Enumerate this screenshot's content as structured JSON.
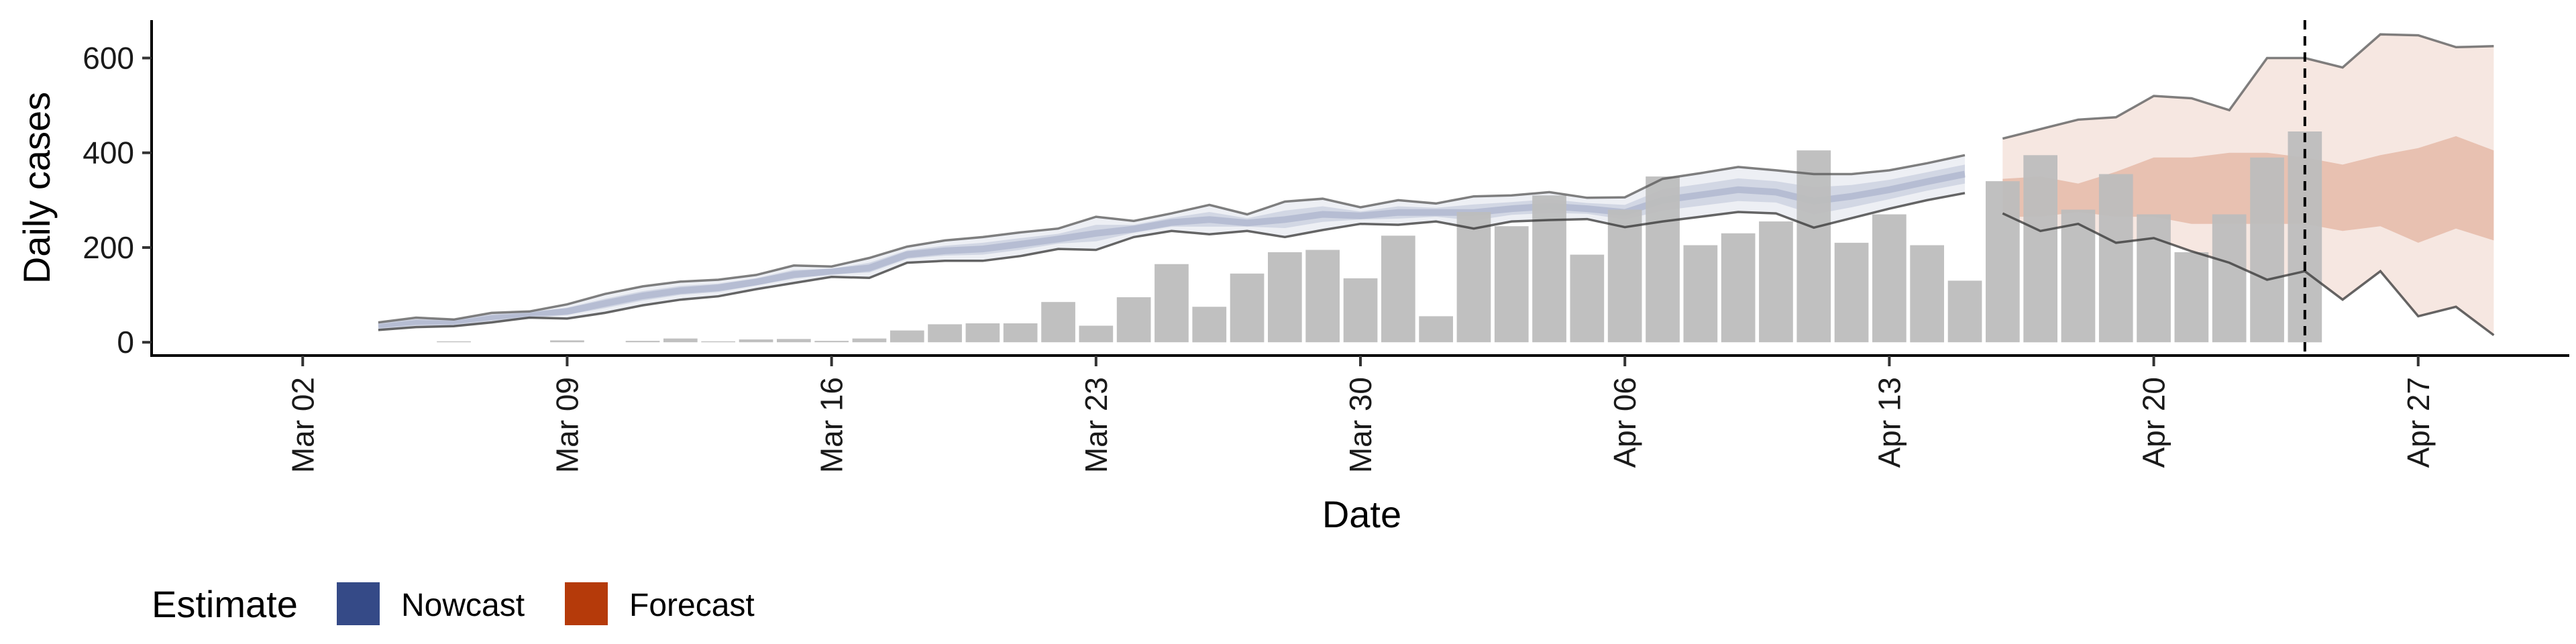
{
  "chart_data": {
    "type": "bar",
    "xlabel": "Date",
    "ylabel": "Daily cases",
    "ylim": [
      -28,
      680
    ],
    "yticks": [
      0,
      200,
      400,
      600
    ],
    "xticks": [
      {
        "date": "2020-03-02",
        "label": "Mar 02"
      },
      {
        "date": "2020-03-09",
        "label": "Mar 09"
      },
      {
        "date": "2020-03-16",
        "label": "Mar 16"
      },
      {
        "date": "2020-03-23",
        "label": "Mar 23"
      },
      {
        "date": "2020-03-30",
        "label": "Mar 30"
      },
      {
        "date": "2020-04-06",
        "label": "Apr 06"
      },
      {
        "date": "2020-04-13",
        "label": "Apr 13"
      },
      {
        "date": "2020-04-20",
        "label": "Apr 20"
      },
      {
        "date": "2020-04-27",
        "label": "Apr 27"
      }
    ],
    "xlim": [
      "2020-02-27",
      "2020-05-01"
    ],
    "grid": false,
    "legend": {
      "position": "bottom-left",
      "title": "Estimate",
      "items": [
        {
          "label": "Nowcast",
          "color": "#354a87"
        },
        {
          "label": "Forecast",
          "color": "#b53a0a"
        }
      ]
    },
    "bar_color": "#bdbdbd",
    "reference_line_date": "2020-04-24",
    "reported_cases": {
      "dates": [
        "2020-03-06",
        "2020-03-09",
        "2020-03-11",
        "2020-03-12",
        "2020-03-13",
        "2020-03-14",
        "2020-03-15",
        "2020-03-16",
        "2020-03-17",
        "2020-03-18",
        "2020-03-19",
        "2020-03-20",
        "2020-03-21",
        "2020-03-22",
        "2020-03-23",
        "2020-03-24",
        "2020-03-25",
        "2020-03-26",
        "2020-03-27",
        "2020-03-28",
        "2020-03-29",
        "2020-03-30",
        "2020-03-31",
        "2020-04-01",
        "2020-04-02",
        "2020-04-03",
        "2020-04-04",
        "2020-04-05",
        "2020-04-06",
        "2020-04-07",
        "2020-04-08",
        "2020-04-09",
        "2020-04-10",
        "2020-04-11",
        "2020-04-12",
        "2020-04-13",
        "2020-04-14",
        "2020-04-15",
        "2020-04-16",
        "2020-04-17",
        "2020-04-18",
        "2020-04-19",
        "2020-04-20",
        "2020-04-21",
        "2020-04-22",
        "2020-04-23",
        "2020-04-24"
      ],
      "values": [
        2,
        4,
        3,
        8,
        2,
        6,
        7,
        3,
        8,
        25,
        38,
        40,
        40,
        85,
        35,
        95,
        165,
        75,
        145,
        190,
        195,
        135,
        225,
        55,
        275,
        245,
        310,
        185,
        280,
        350,
        205,
        230,
        255,
        405,
        210,
        270,
        205,
        130,
        340,
        395,
        280,
        355,
        270,
        190,
        270,
        390,
        445
      ]
    },
    "series": [
      {
        "name": "Nowcast",
        "color": "#354a87",
        "dates": [
          "2020-03-04",
          "2020-03-05",
          "2020-03-06",
          "2020-03-07",
          "2020-03-08",
          "2020-03-09",
          "2020-03-10",
          "2020-03-11",
          "2020-03-12",
          "2020-03-13",
          "2020-03-14",
          "2020-03-15",
          "2020-03-16",
          "2020-03-17",
          "2020-03-18",
          "2020-03-19",
          "2020-03-20",
          "2020-03-21",
          "2020-03-22",
          "2020-03-23",
          "2020-03-24",
          "2020-03-25",
          "2020-03-26",
          "2020-03-27",
          "2020-03-28",
          "2020-03-29",
          "2020-03-30",
          "2020-03-31",
          "2020-04-01",
          "2020-04-02",
          "2020-04-03",
          "2020-04-04",
          "2020-04-05",
          "2020-04-06",
          "2020-04-07",
          "2020-04-08",
          "2020-04-09",
          "2020-04-10",
          "2020-04-11",
          "2020-04-12",
          "2020-04-13",
          "2020-04-14",
          "2020-04-15"
        ],
        "upper": [
          42,
          52,
          48,
          62,
          65,
          80,
          102,
          118,
          128,
          132,
          142,
          162,
          160,
          178,
          202,
          215,
          222,
          232,
          240,
          265,
          256,
          272,
          290,
          270,
          297,
          303,
          285,
          300,
          293,
          308,
          310,
          317,
          305,
          306,
          345,
          357,
          370,
          363,
          355,
          355,
          363,
          378,
          395
        ],
        "lower": [
          26,
          32,
          34,
          42,
          52,
          50,
          62,
          78,
          90,
          97,
          112,
          125,
          138,
          136,
          168,
          172,
          172,
          182,
          197,
          195,
          222,
          235,
          228,
          235,
          222,
          237,
          250,
          248,
          255,
          240,
          255,
          258,
          260,
          243,
          255,
          265,
          275,
          272,
          242,
          262,
          282,
          300,
          315
        ],
        "median": [
          34,
          42,
          41,
          52,
          58,
          65,
          82,
          98,
          109,
          115,
          127,
          143,
          149,
          157,
          185,
          193,
          197,
          207,
          218,
          230,
          239,
          253,
          259,
          252,
          259,
          270,
          267,
          274,
          274,
          274,
          282,
          287,
          282,
          274,
          300,
          311,
          322,
          317,
          298,
          308,
          322,
          339,
          355
        ],
        "inner_upper": [
          38,
          47,
          45,
          57,
          62,
          73,
          92,
          108,
          119,
          124,
          135,
          153,
          155,
          168,
          194,
          204,
          210,
          220,
          229,
          248,
          248,
          263,
          275,
          262,
          278,
          287,
          276,
          287,
          284,
          291,
          296,
          302,
          294,
          290,
          323,
          334,
          346,
          340,
          327,
          332,
          343,
          359,
          375
        ],
        "inner_lower": [
          30,
          37,
          38,
          47,
          55,
          58,
          72,
          88,
          100,
          106,
          120,
          134,
          144,
          147,
          176,
          183,
          185,
          195,
          208,
          213,
          231,
          244,
          244,
          244,
          241,
          254,
          259,
          261,
          265,
          257,
          269,
          273,
          271,
          259,
          278,
          288,
          298,
          295,
          270,
          285,
          302,
          320,
          335
        ]
      },
      {
        "name": "Forecast",
        "color": "#b53a0a",
        "dates": [
          "2020-04-16",
          "2020-04-17",
          "2020-04-18",
          "2020-04-19",
          "2020-04-20",
          "2020-04-21",
          "2020-04-22",
          "2020-04-23",
          "2020-04-24",
          "2020-04-25",
          "2020-04-26",
          "2020-04-27",
          "2020-04-28",
          "2020-04-29"
        ],
        "upper": [
          430,
          450,
          470,
          475,
          520,
          515,
          490,
          600,
          600,
          580,
          650,
          648,
          623,
          625
        ],
        "lower": [
          272,
          235,
          250,
          210,
          220,
          192,
          168,
          132,
          150,
          90,
          150,
          55,
          75,
          15
        ],
        "inner_upper": [
          345,
          350,
          335,
          360,
          390,
          390,
          400,
          400,
          390,
          375,
          395,
          410,
          435,
          405
        ],
        "inner_lower": [
          265,
          265,
          275,
          265,
          265,
          250,
          250,
          250,
          250,
          235,
          245,
          210,
          240,
          215
        ]
      }
    ]
  }
}
